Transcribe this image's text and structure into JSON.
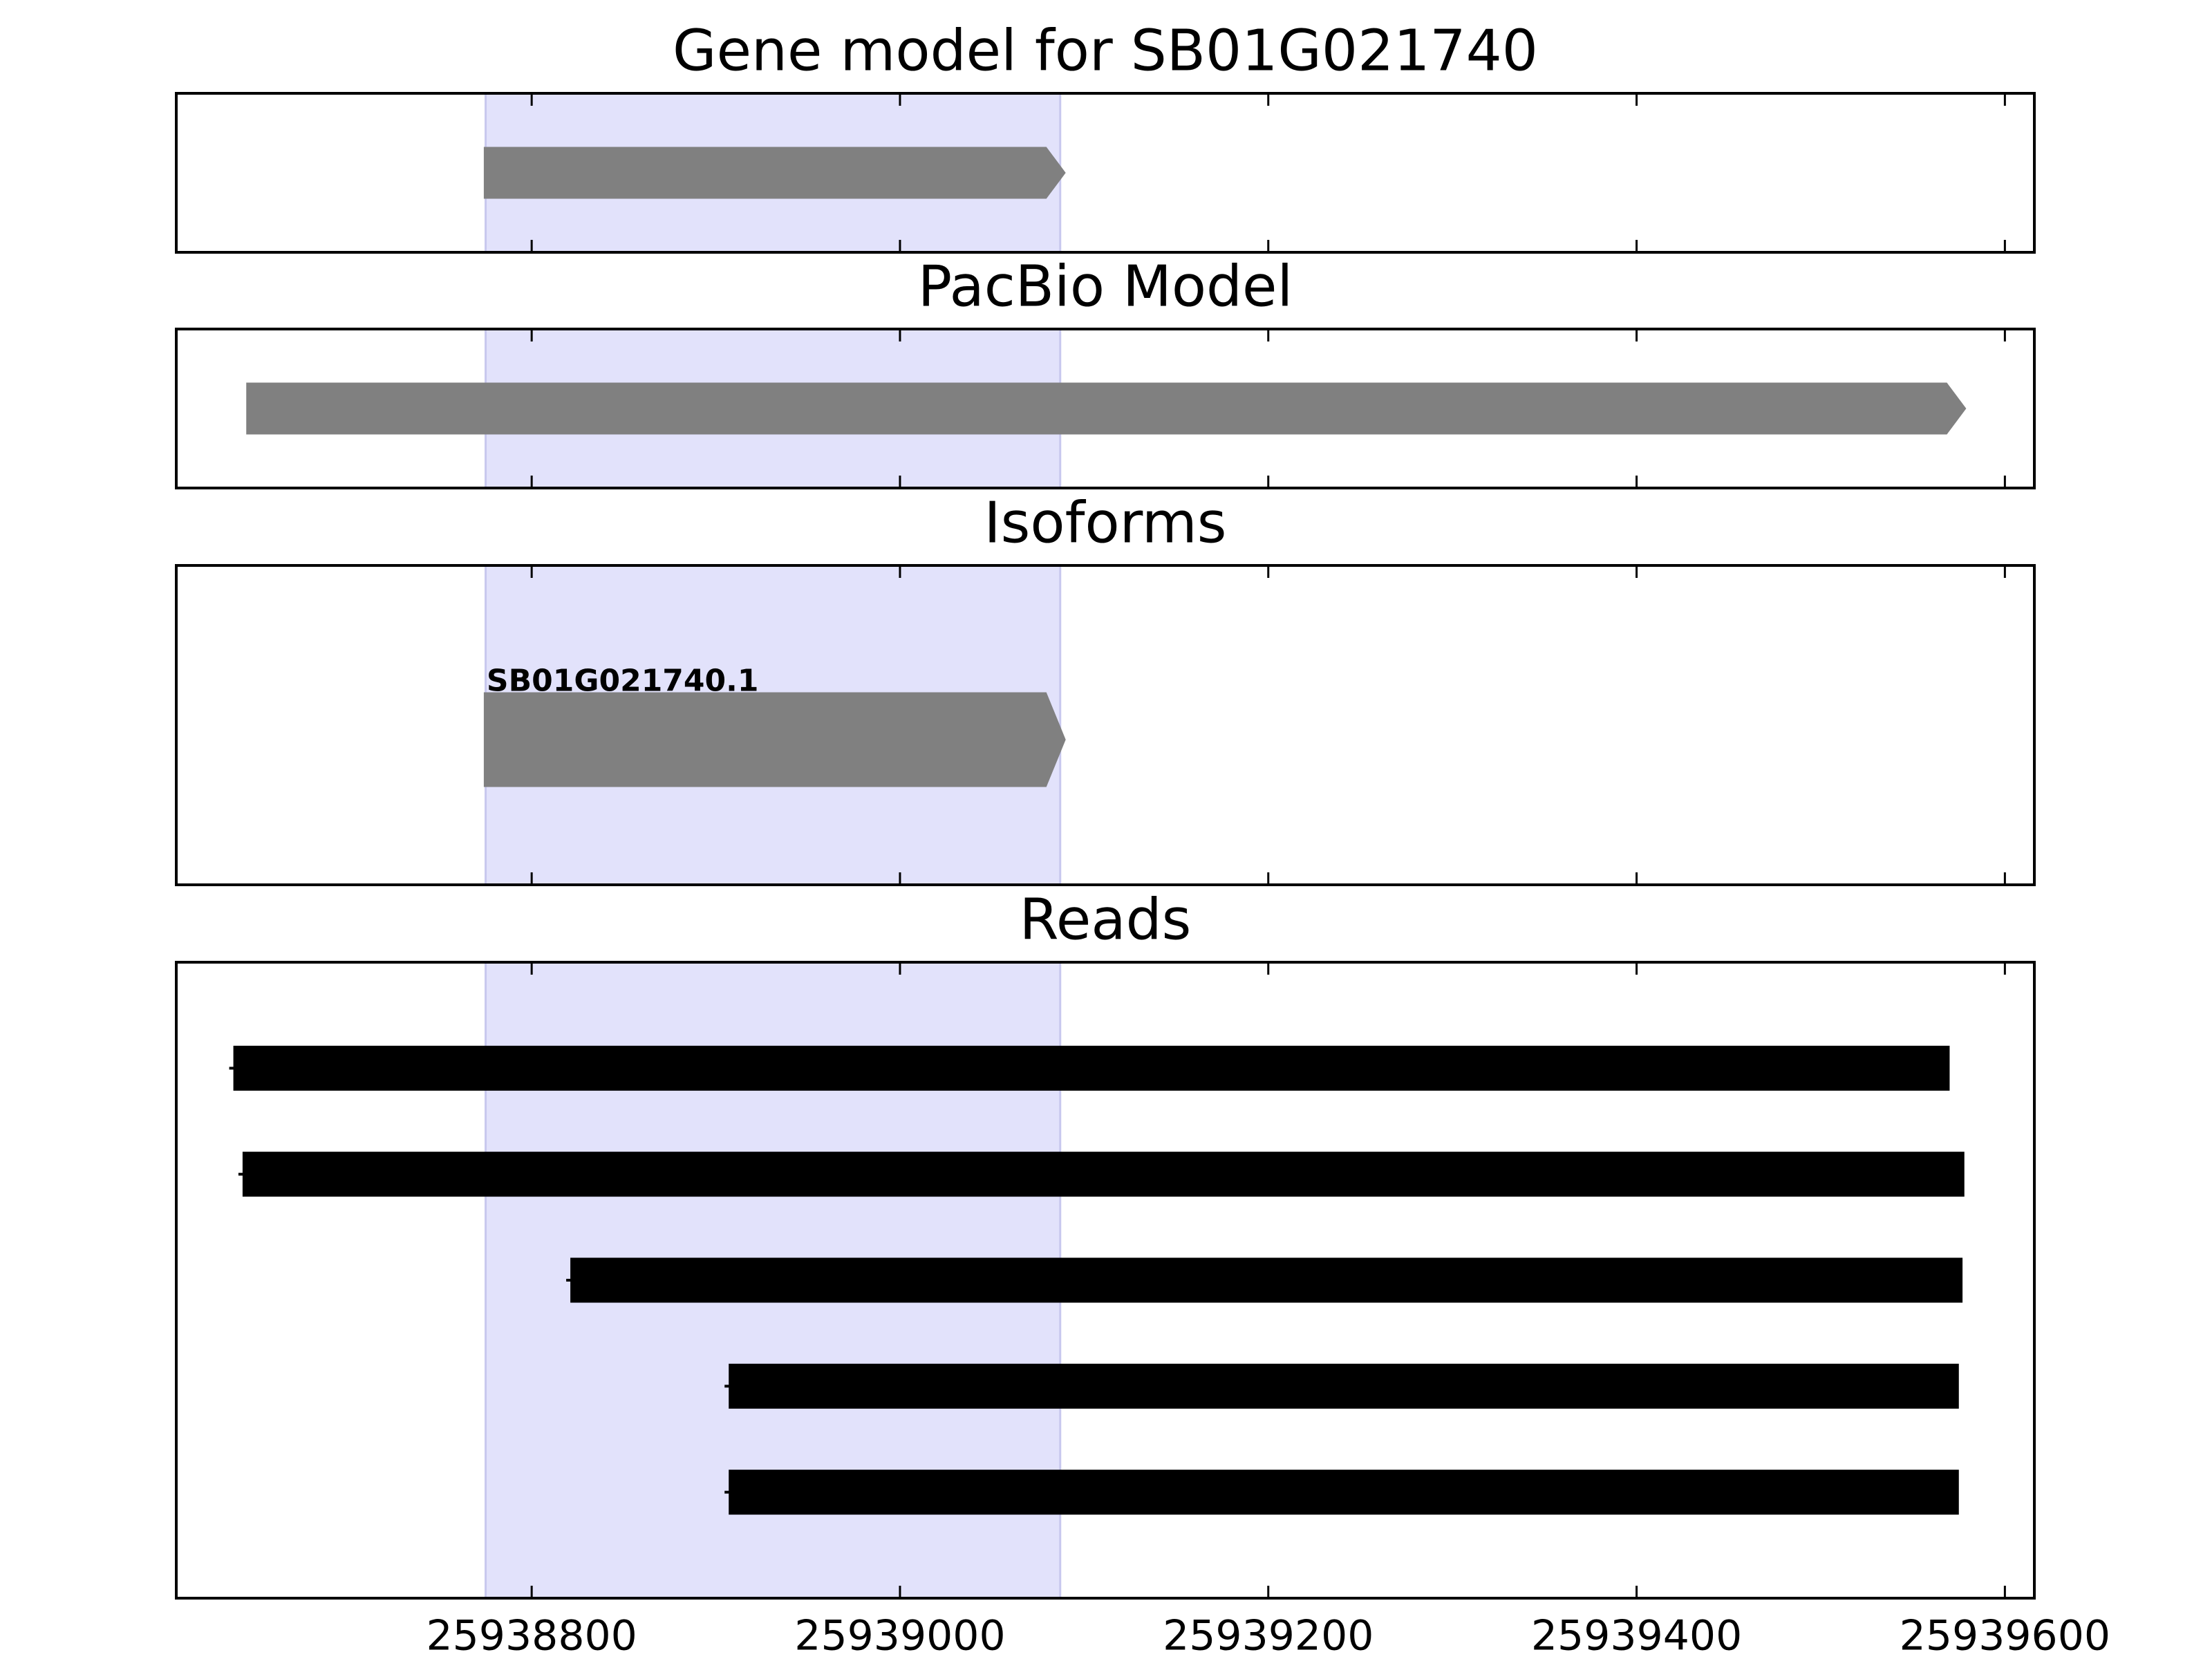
{
  "chart_data": [
    {
      "type": "gene",
      "title": "Gene model for SB01G021740",
      "xlim": [
        25938607,
        25939616
      ],
      "xticks": [
        25938800,
        25939000,
        25939200,
        25939400,
        25939600
      ],
      "highlight": [
        25938775,
        25939087
      ],
      "highlight_color": "#e2e2fb",
      "color": "#808080",
      "features": [
        {
          "start": 25938774,
          "end": 25939090
        }
      ]
    },
    {
      "type": "gene",
      "title": "PacBio Model",
      "xlim": [
        25938607,
        25939616
      ],
      "xticks": [
        25938800,
        25939000,
        25939200,
        25939400,
        25939600
      ],
      "highlight": [
        25938775,
        25939087
      ],
      "highlight_color": "#e2e2fb",
      "color": "#808080",
      "features": [
        {
          "start": 25938645,
          "end": 25939579
        }
      ]
    },
    {
      "type": "isoforms",
      "title": "Isoforms",
      "xlim": [
        25938607,
        25939616
      ],
      "xticks": [
        25938800,
        25939000,
        25939200,
        25939400,
        25939600
      ],
      "highlight": [
        25938775,
        25939087
      ],
      "highlight_color": "#e2e2fb",
      "color": "#808080",
      "features": [
        {
          "name": "SB01G021740.1",
          "start": 25938774,
          "end": 25939090
        }
      ]
    },
    {
      "type": "reads",
      "title": "Reads",
      "xlim": [
        25938607,
        25939616
      ],
      "xticks": [
        25938800,
        25939000,
        25939200,
        25939400,
        25939600
      ],
      "highlight": [
        25938775,
        25939087
      ],
      "highlight_color": "#e2e2fb",
      "color": "#000000",
      "features": [
        {
          "start": 25938638,
          "end": 25939570
        },
        {
          "start": 25938643,
          "end": 25939578
        },
        {
          "start": 25938821,
          "end": 25939577
        },
        {
          "start": 25938907,
          "end": 25939575
        },
        {
          "start": 25938907,
          "end": 25939575
        }
      ]
    }
  ]
}
